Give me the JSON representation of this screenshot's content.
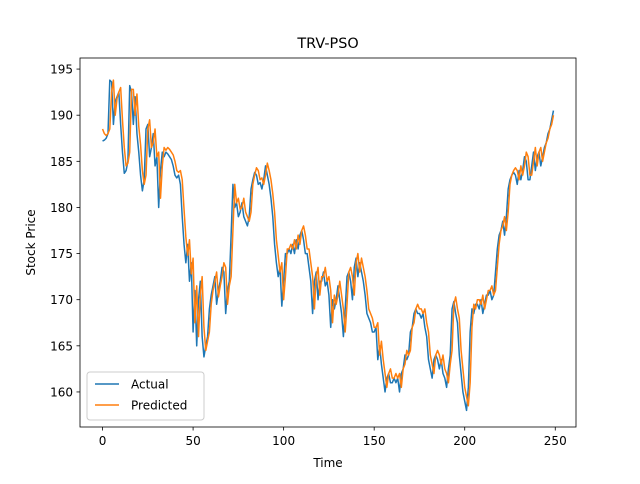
{
  "chart_data": {
    "type": "line",
    "title": "TRV-PSO",
    "x_label": "Time",
    "y_label": "Stock Price",
    "xlim": [
      -12.45,
      261.45
    ],
    "xticks": [
      0,
      50,
      100,
      150,
      200,
      250
    ],
    "ylim": [
      156.2,
      196.2
    ],
    "yticks": [
      160,
      165,
      170,
      175,
      180,
      185,
      190,
      195
    ],
    "grid": false,
    "legend": "lower left",
    "series": [
      {
        "name": "Actual",
        "color": "#1f77b4",
        "values": [
          187.2,
          187.3,
          187.5,
          188.0,
          193.8,
          193.6,
          189.0,
          191.5,
          192.0,
          192.5,
          189.0,
          186.0,
          183.7,
          184.0,
          185.0,
          193.2,
          192.5,
          189.0,
          192.0,
          188.0,
          186.0,
          183.5,
          181.8,
          183.0,
          188.5,
          189.0,
          185.5,
          186.5,
          188.0,
          184.5,
          185.5,
          180.0,
          184.0,
          186.0,
          185.5,
          186.0,
          185.8,
          185.5,
          185.2,
          184.5,
          183.5,
          183.2,
          183.5,
          182.5,
          179.0,
          176.0,
          174.0,
          176.0,
          172.0,
          174.0,
          166.5,
          171.0,
          165.0,
          170.0,
          172.0,
          166.0,
          163.8,
          165.0,
          166.0,
          169.0,
          170.5,
          171.5,
          172.5,
          169.5,
          171.0,
          172.0,
          173.5,
          173.0,
          168.5,
          171.0,
          172.0,
          177.0,
          182.5,
          180.0,
          180.5,
          179.0,
          179.5,
          180.5,
          179.0,
          178.5,
          178.0,
          179.0,
          182.0,
          183.0,
          183.8,
          183.5,
          182.5,
          182.7,
          182.0,
          183.0,
          184.5,
          183.5,
          182.5,
          181.0,
          179.0,
          176.0,
          174.0,
          172.5,
          173.5,
          169.3,
          172.0,
          175.0,
          175.0,
          175.5,
          175.0,
          176.0,
          175.0,
          176.5,
          175.5,
          177.0,
          177.5,
          176.5,
          175.0,
          175.0,
          173.5,
          172.0,
          168.5,
          172.0,
          173.0,
          170.0,
          172.0,
          172.0,
          173.0,
          171.5,
          172.0,
          170.5,
          167.0,
          170.0,
          169.0,
          170.0,
          171.5,
          170.0,
          168.5,
          166.0,
          169.0,
          172.5,
          173.0,
          172.0,
          170.0,
          173.5,
          174.5,
          172.5,
          174.0,
          173.0,
          172.0,
          170.5,
          168.5,
          168.0,
          167.5,
          166.5,
          166.5,
          167.0,
          163.5,
          165.0,
          163.0,
          161.5,
          160.0,
          161.5,
          162.0,
          161.0,
          161.0,
          161.5,
          161.0,
          161.5,
          160.0,
          162.0,
          162.5,
          164.0,
          163.5,
          164.0,
          166.5,
          167.0,
          168.5,
          169.0,
          168.5,
          168.5,
          168.0,
          168.5,
          167.0,
          166.0,
          163.5,
          162.5,
          161.5,
          163.5,
          164.0,
          163.5,
          162.5,
          163.5,
          162.0,
          161.5,
          160.5,
          162.5,
          164.0,
          169.0,
          169.8,
          168.5,
          167.5,
          164.0,
          162.0,
          160.0,
          159.0,
          158.0,
          160.5,
          166.5,
          169.0,
          168.5,
          169.5,
          169.5,
          169.0,
          170.0,
          168.5,
          169.5,
          170.5,
          170.5,
          171.0,
          170.0,
          170.5,
          173.0,
          175.5,
          177.0,
          177.5,
          178.5,
          177.0,
          179.0,
          182.0,
          183.0,
          183.5,
          183.8,
          183.5,
          182.5,
          184.0,
          183.0,
          184.0,
          185.5,
          185.0,
          183.0,
          183.0,
          184.5,
          186.0,
          184.0,
          185.5,
          186.0,
          184.5,
          185.5,
          186.5,
          187.0,
          188.0,
          188.5,
          189.5,
          190.5
        ]
      },
      {
        "name": "Predicted",
        "color": "#ff7f0e",
        "values": [
          188.5,
          188.0,
          187.8,
          188.0,
          188.5,
          192.5,
          193.8,
          190.0,
          191.8,
          192.5,
          193.0,
          189.5,
          186.5,
          184.5,
          184.8,
          186.0,
          192.8,
          192.8,
          190.0,
          192.3,
          188.8,
          186.8,
          184.0,
          182.5,
          183.5,
          188.5,
          189.5,
          186.5,
          187.0,
          188.5,
          185.5,
          186.0,
          181.0,
          184.5,
          186.5,
          186.2,
          186.5,
          186.3,
          186.0,
          185.7,
          185.0,
          184.0,
          183.8,
          184.0,
          183.0,
          179.8,
          176.8,
          174.8,
          176.5,
          172.8,
          174.5,
          167.5,
          171.5,
          166.0,
          170.5,
          172.5,
          167.0,
          164.5,
          165.5,
          166.5,
          169.5,
          171.0,
          172.0,
          173.0,
          170.3,
          171.5,
          172.5,
          174.0,
          173.5,
          169.5,
          171.5,
          172.5,
          177.5,
          182.5,
          180.5,
          181.0,
          179.8,
          180.0,
          181.0,
          179.5,
          179.0,
          178.5,
          179.5,
          182.5,
          183.5,
          184.3,
          184.0,
          183.0,
          183.2,
          182.5,
          183.5,
          184.8,
          184.0,
          183.0,
          181.5,
          179.5,
          176.5,
          174.8,
          173.0,
          174.0,
          170.0,
          172.5,
          175.5,
          175.5,
          176.0,
          175.5,
          176.5,
          175.5,
          177.0,
          176.0,
          177.5,
          178.0,
          177.0,
          175.5,
          175.5,
          174.0,
          172.5,
          169.0,
          172.5,
          173.5,
          170.5,
          172.5,
          172.5,
          173.5,
          172.0,
          172.5,
          171.0,
          167.5,
          170.5,
          169.5,
          170.5,
          172.0,
          170.5,
          169.0,
          166.5,
          169.5,
          173.0,
          173.5,
          172.5,
          170.5,
          174.0,
          175.0,
          173.0,
          174.5,
          173.5,
          172.5,
          171.0,
          169.0,
          168.5,
          168.0,
          167.0,
          167.0,
          167.5,
          164.0,
          165.5,
          163.5,
          162.0,
          160.5,
          162.0,
          162.5,
          161.5,
          161.5,
          162.0,
          161.5,
          162.0,
          160.5,
          162.5,
          163.0,
          164.5,
          164.0,
          164.5,
          167.0,
          167.5,
          169.0,
          169.5,
          169.0,
          169.0,
          168.5,
          169.0,
          167.5,
          166.5,
          164.0,
          163.0,
          162.0,
          164.0,
          164.5,
          164.0,
          163.0,
          164.0,
          162.5,
          162.0,
          161.0,
          163.0,
          164.5,
          169.5,
          170.3,
          169.0,
          168.0,
          164.5,
          162.5,
          160.5,
          159.5,
          158.5,
          161.0,
          167.0,
          169.5,
          169.0,
          170.0,
          170.0,
          169.5,
          170.5,
          169.0,
          170.0,
          171.0,
          171.0,
          171.5,
          170.5,
          171.0,
          173.5,
          176.0,
          177.5,
          178.0,
          179.0,
          177.5,
          179.5,
          182.5,
          183.5,
          184.0,
          184.3,
          184.0,
          183.0,
          184.5,
          183.5,
          184.5,
          186.0,
          185.5,
          183.5,
          183.5,
          185.0,
          186.5,
          184.5,
          186.0,
          186.5,
          185.0,
          186.0,
          187.0,
          187.5,
          188.5,
          189.0,
          190.0
        ]
      }
    ]
  }
}
